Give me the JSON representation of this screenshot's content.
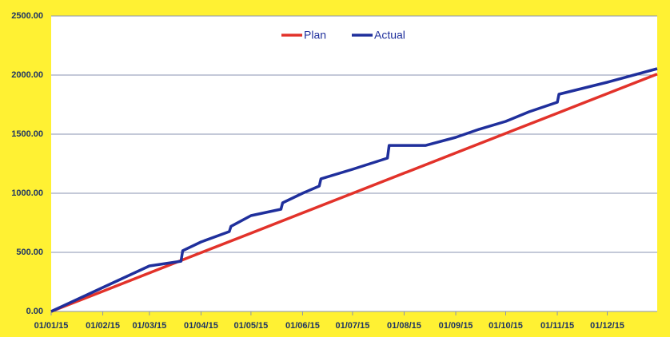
{
  "chart_data": {
    "type": "line",
    "series": [
      {
        "name": "Plan",
        "color": "#e2322a",
        "x": [
          "2015-01-01",
          "2015-02-01",
          "2015-03-01",
          "2015-04-01",
          "2015-05-01",
          "2015-06-01",
          "2015-07-01",
          "2015-08-01",
          "2015-09-01",
          "2015-10-01",
          "2015-11-01",
          "2015-12-01",
          "2015-12-31"
        ],
        "values": [
          0,
          171,
          326,
          497,
          662,
          834,
          999,
          1170,
          1341,
          1507,
          1678,
          1843,
          2009
        ]
      },
      {
        "name": "Actual",
        "color": "#1f2f9c",
        "x": [
          "2015-01-01",
          "2015-02-01",
          "2015-03-01",
          "2015-03-20",
          "2015-03-21",
          "2015-04-01",
          "2015-04-18",
          "2015-04-19",
          "2015-05-01",
          "2015-05-19",
          "2015-05-20",
          "2015-06-01",
          "2015-06-11",
          "2015-06-12",
          "2015-07-01",
          "2015-07-22",
          "2015-07-23",
          "2015-08-14",
          "2015-09-01",
          "2015-09-15",
          "2015-10-01",
          "2015-10-15",
          "2015-11-01",
          "2015-11-02",
          "2015-12-01",
          "2015-12-31"
        ],
        "values": [
          0,
          203,
          385,
          425,
          514,
          588,
          676,
          720,
          811,
          865,
          919,
          1000,
          1061,
          1122,
          1203,
          1297,
          1405,
          1405,
          1473,
          1541,
          1608,
          1689,
          1770,
          1838,
          1939,
          2054
        ]
      }
    ],
    "xlim": [
      "2015-01-01",
      "2015-12-31"
    ],
    "xticks": [
      {
        "value": "2015-01-01",
        "label": "01/01/15"
      },
      {
        "value": "2015-02-01",
        "label": "01/02/15"
      },
      {
        "value": "2015-03-01",
        "label": "01/03/15"
      },
      {
        "value": "2015-04-01",
        "label": "01/04/15"
      },
      {
        "value": "2015-05-01",
        "label": "01/05/15"
      },
      {
        "value": "2015-06-01",
        "label": "01/06/15"
      },
      {
        "value": "2015-07-01",
        "label": "01/07/15"
      },
      {
        "value": "2015-08-01",
        "label": "01/08/15"
      },
      {
        "value": "2015-09-01",
        "label": "01/09/15"
      },
      {
        "value": "2015-10-01",
        "label": "01/10/15"
      },
      {
        "value": "2015-11-01",
        "label": "01/11/15"
      },
      {
        "value": "2015-12-01",
        "label": "01/12/15"
      }
    ],
    "ylim": [
      0,
      2500
    ],
    "yticks": [
      {
        "value": 0,
        "label": "0.00"
      },
      {
        "value": 500,
        "label": "500.00"
      },
      {
        "value": 1000,
        "label": "1000.00"
      },
      {
        "value": 1500,
        "label": "1500.00"
      },
      {
        "value": 2000,
        "label": "2000.00"
      },
      {
        "value": 2500,
        "label": "2500.00"
      }
    ],
    "grid": true
  }
}
